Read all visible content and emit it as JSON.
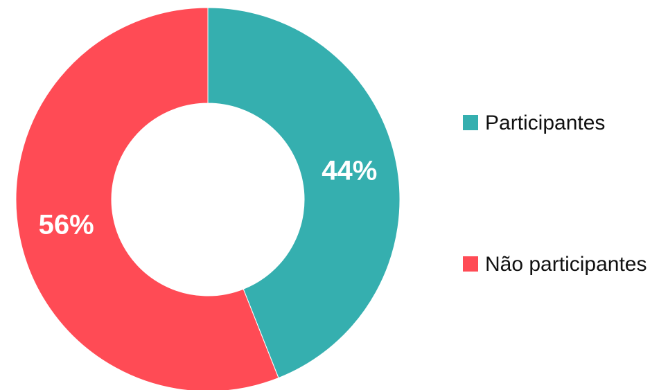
{
  "chart_data": {
    "type": "donut",
    "categories": [
      "Participantes",
      "Não participantes"
    ],
    "values": [
      44,
      56
    ],
    "value_labels": [
      "44%",
      "56%"
    ],
    "colors": [
      "#35afaf",
      "#ff4b55"
    ],
    "legend": "right"
  }
}
